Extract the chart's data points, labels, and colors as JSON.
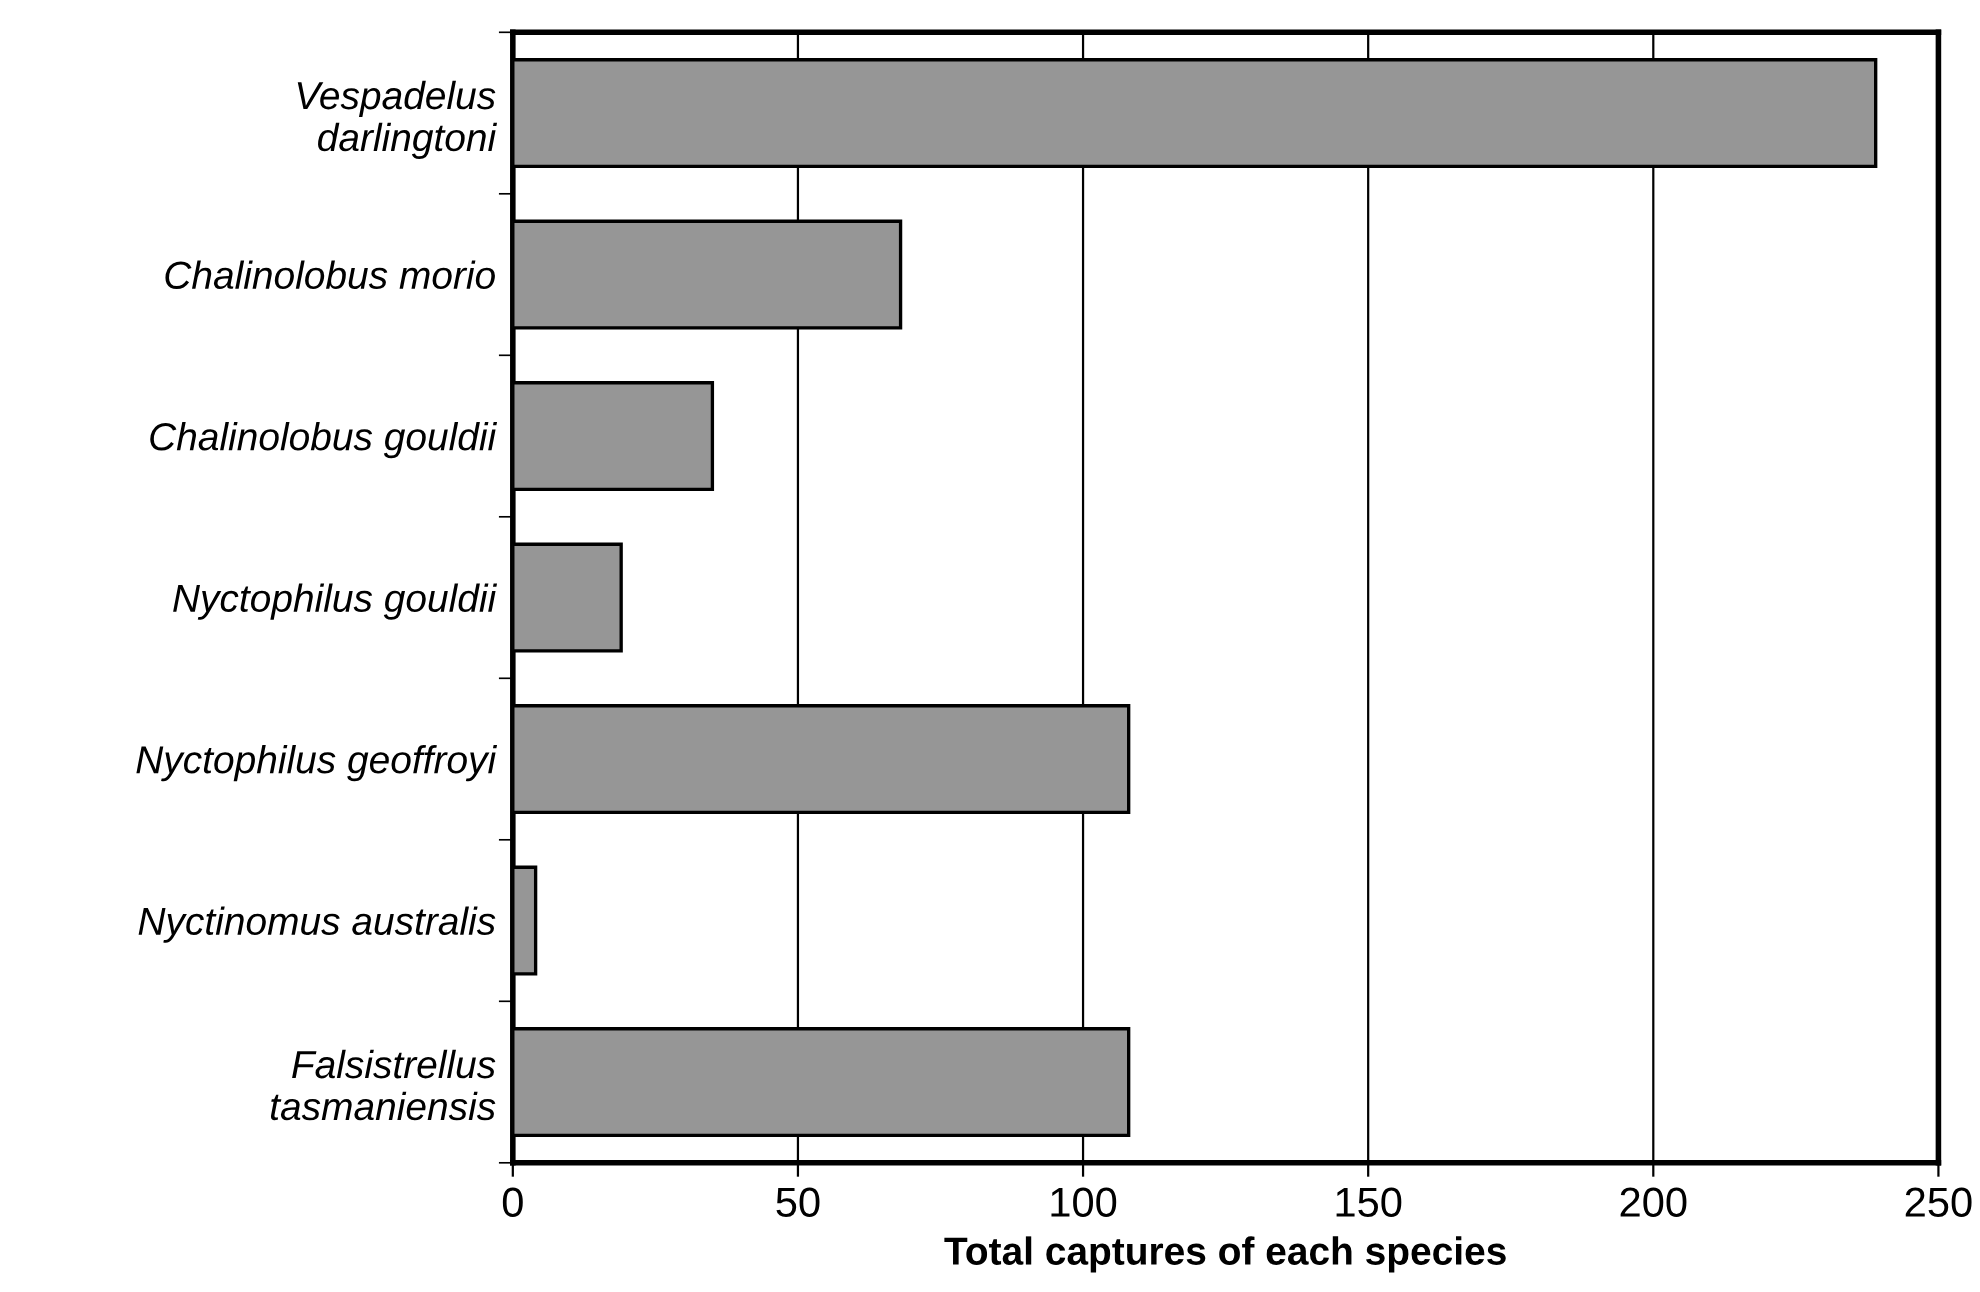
{
  "chart_data": {
    "type": "bar",
    "orientation": "horizontal",
    "xlabel": "Total captures of each species",
    "categories": [
      "Vespadelus\ndarlingtoni",
      "Chalinolobus morio",
      "Chalinolobus gouldii",
      "Nyctophilus gouldii",
      "Nyctophilus geoffroyi",
      "Nyctinomus australis",
      "Falsistrellus\ntasmaniensis"
    ],
    "values": [
      239,
      68,
      35,
      19,
      108,
      4,
      108
    ],
    "color": "#969696",
    "xlim": [
      0,
      250
    ],
    "xticks": [
      0,
      50,
      100,
      150,
      200,
      250
    ],
    "grid": "x"
  }
}
